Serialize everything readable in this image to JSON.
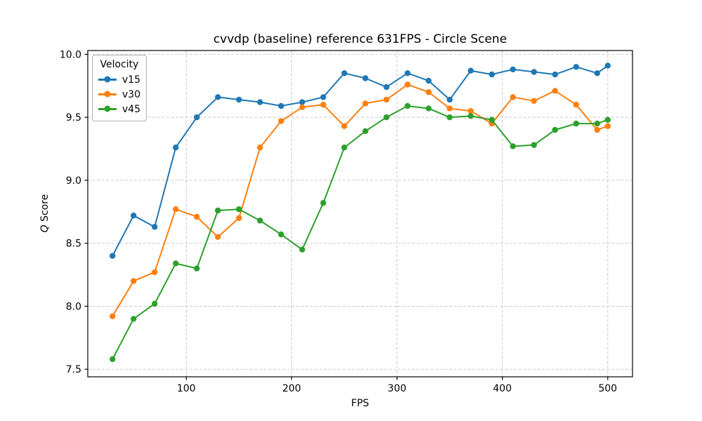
{
  "chart_data": {
    "type": "line",
    "title": "cvvdp (baseline) reference 631FPS - Circle Scene",
    "xlabel": "FPS",
    "ylabel": "Q Score",
    "legend": {
      "title": "Velocity",
      "position": "upper-left"
    },
    "grid": true,
    "grid_style": "dashed",
    "xlim": [
      6.5,
      523.5
    ],
    "ylim": [
      7.44,
      10.03
    ],
    "xticks": [
      100,
      200,
      300,
      400,
      500
    ],
    "yticks": [
      7.5,
      8.0,
      8.5,
      9.0,
      9.5,
      10.0
    ],
    "x": [
      30,
      50,
      70,
      90,
      110,
      130,
      150,
      170,
      190,
      210,
      230,
      250,
      270,
      290,
      310,
      330,
      350,
      370,
      390,
      410,
      430,
      450,
      470,
      490,
      500
    ],
    "series": [
      {
        "name": "v15",
        "color": "#1f77b4",
        "values": [
          8.4,
          8.72,
          8.63,
          9.26,
          9.5,
          9.66,
          9.64,
          9.62,
          9.59,
          9.62,
          9.66,
          9.85,
          9.81,
          9.74,
          9.85,
          9.79,
          9.64,
          9.87,
          9.84,
          9.88,
          9.86,
          9.84,
          9.9,
          9.85,
          9.91
        ]
      },
      {
        "name": "v30",
        "color": "#ff7f0e",
        "values": [
          7.92,
          8.2,
          8.27,
          8.77,
          8.71,
          8.55,
          8.7,
          9.26,
          9.47,
          9.58,
          9.6,
          9.43,
          9.61,
          9.64,
          9.76,
          9.7,
          9.57,
          9.55,
          9.45,
          9.66,
          9.63,
          9.71,
          9.6,
          9.4,
          9.43
        ]
      },
      {
        "name": "v45",
        "color": "#2ca02c",
        "values": [
          7.58,
          7.9,
          8.02,
          8.34,
          8.3,
          8.76,
          8.77,
          8.68,
          8.57,
          8.45,
          8.82,
          9.26,
          9.39,
          9.5,
          9.59,
          9.57,
          9.5,
          9.51,
          9.48,
          9.27,
          9.28,
          9.4,
          9.45,
          9.45,
          9.48
        ]
      }
    ]
  }
}
